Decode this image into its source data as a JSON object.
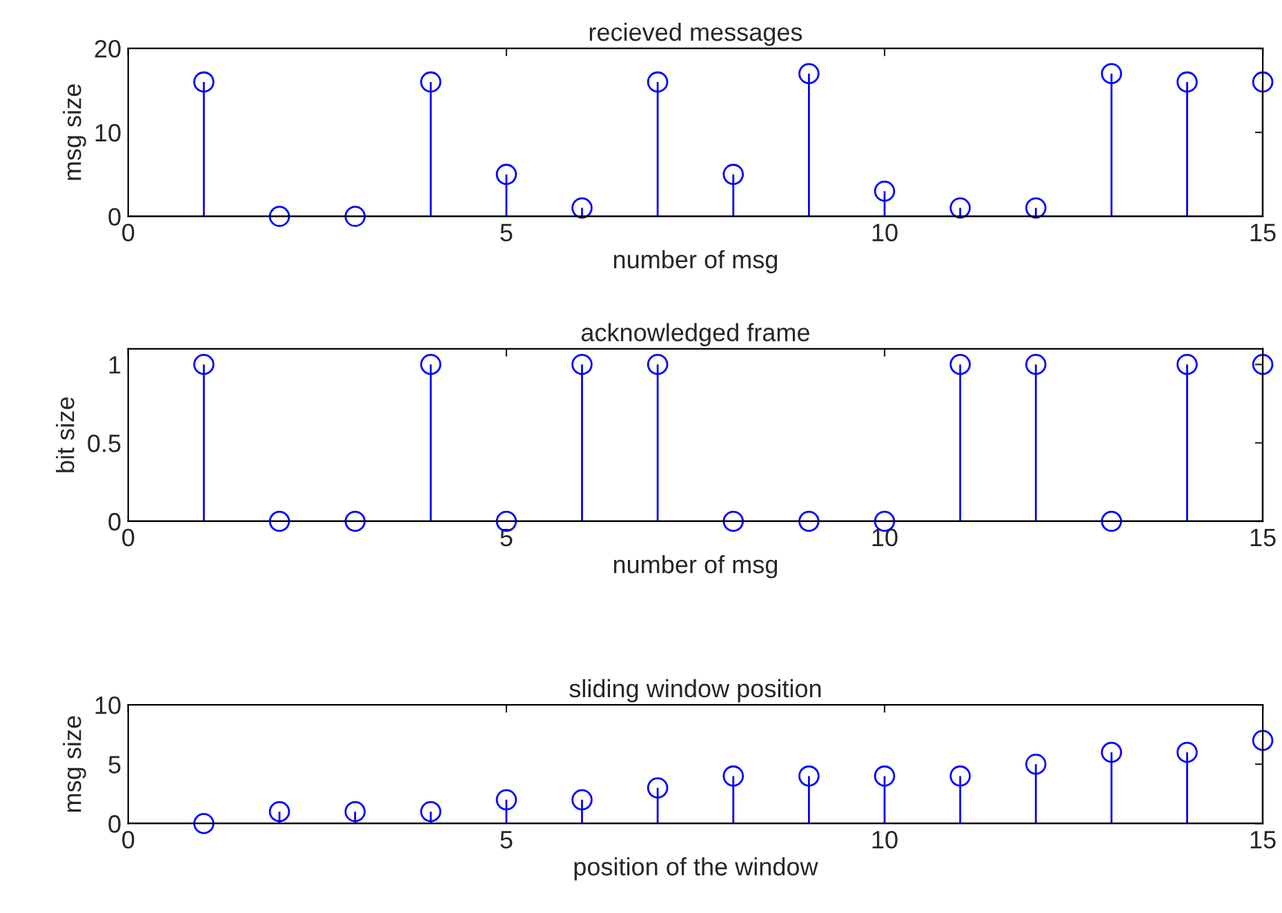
{
  "chart_data": [
    {
      "type": "lollipop",
      "title": "recieved messages",
      "xlabel": "number of msg",
      "ylabel": "msg size",
      "x": [
        1,
        2,
        3,
        4,
        5,
        6,
        7,
        8,
        9,
        10,
        11,
        12,
        13,
        14,
        15
      ],
      "values": [
        16,
        0,
        0,
        16,
        5,
        1,
        16,
        5,
        17,
        3,
        1,
        1,
        17,
        16,
        16
      ],
      "color": "#0000ff",
      "marker": "circle",
      "xlim": [
        0,
        15
      ],
      "xticks": [
        0,
        5,
        10,
        15
      ],
      "ylim": [
        0,
        20
      ],
      "yticks": [
        0,
        10,
        20
      ]
    },
    {
      "type": "lollipop",
      "title": "acknowledged frame",
      "xlabel": "number of msg",
      "ylabel": "bit size",
      "x": [
        1,
        2,
        3,
        4,
        5,
        6,
        7,
        8,
        9,
        10,
        11,
        12,
        13,
        14,
        15
      ],
      "values": [
        1,
        0,
        0,
        1,
        0,
        1,
        1,
        0,
        0,
        0,
        1,
        1,
        0,
        1,
        1
      ],
      "color": "#0000ff",
      "marker": "circle",
      "xlim": [
        0,
        15
      ],
      "xticks": [
        0,
        5,
        10,
        15
      ],
      "ylim": [
        0,
        1.1
      ],
      "yticks": [
        0,
        0.5,
        1
      ]
    },
    {
      "type": "lollipop",
      "title": "sliding window position",
      "xlabel": "position of the window",
      "ylabel": "msg size",
      "x": [
        1,
        2,
        3,
        4,
        5,
        6,
        7,
        8,
        9,
        10,
        11,
        12,
        13,
        14,
        15
      ],
      "values": [
        0,
        1,
        1,
        1,
        2,
        2,
        3,
        4,
        4,
        4,
        4,
        5,
        6,
        6,
        7
      ],
      "color": "#0000ff",
      "marker": "circle",
      "xlim": [
        0,
        15
      ],
      "xticks": [
        0,
        5,
        10,
        15
      ],
      "ylim": [
        0,
        10
      ],
      "yticks": [
        0,
        5,
        10
      ]
    }
  ]
}
